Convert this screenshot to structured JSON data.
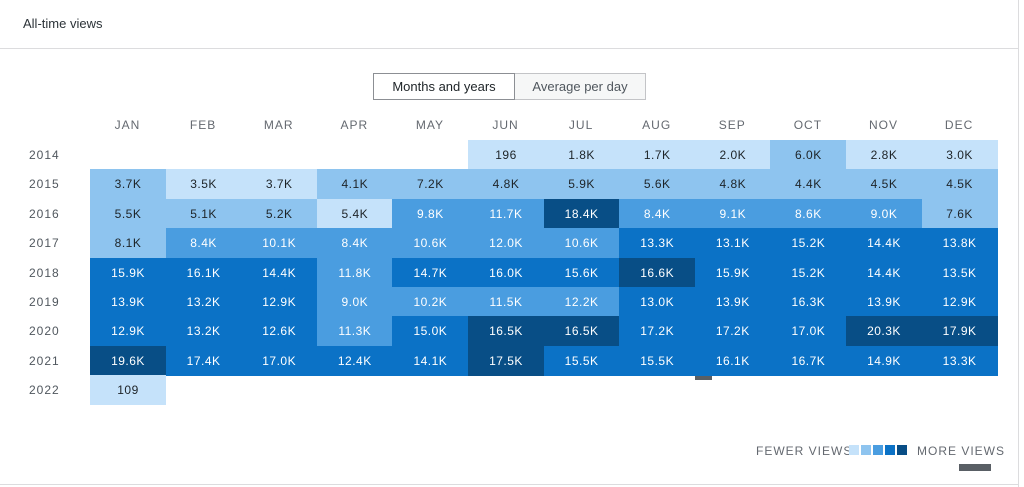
{
  "card": {
    "title": "All-time views"
  },
  "toggle": {
    "months_and_years": "Months and years",
    "average_per_day": "Average per day"
  },
  "months": [
    "JAN",
    "FEB",
    "MAR",
    "APR",
    "MAY",
    "JUN",
    "JUL",
    "AUG",
    "SEP",
    "OCT",
    "NOV",
    "DEC"
  ],
  "years": [
    "2014",
    "2015",
    "2016",
    "2017",
    "2018",
    "2019",
    "2020",
    "2021",
    "2022"
  ],
  "cells": [
    [
      null,
      null,
      null,
      null,
      null,
      "196",
      "1.8K",
      "1.7K",
      "2.0K",
      "6.0K",
      "2.8K",
      "3.0K"
    ],
    [
      "3.7K",
      "3.5K",
      "3.7K",
      "4.1K",
      "7.2K",
      "4.8K",
      "5.9K",
      "5.6K",
      "4.8K",
      "4.4K",
      "4.5K",
      "4.5K"
    ],
    [
      "5.5K",
      "5.1K",
      "5.2K",
      "5.4K",
      "9.8K",
      "11.7K",
      "18.4K",
      "8.4K",
      "9.1K",
      "8.6K",
      "9.0K",
      "7.6K"
    ],
    [
      "8.1K",
      "8.4K",
      "10.1K",
      "8.4K",
      "10.6K",
      "12.0K",
      "10.6K",
      "13.3K",
      "13.1K",
      "15.2K",
      "14.4K",
      "13.8K"
    ],
    [
      "15.9K",
      "16.1K",
      "14.4K",
      "11.8K",
      "14.7K",
      "16.0K",
      "15.6K",
      "16.6K",
      "15.9K",
      "15.2K",
      "14.4K",
      "13.5K"
    ],
    [
      "13.9K",
      "13.2K",
      "12.9K",
      "9.0K",
      "10.2K",
      "11.5K",
      "12.2K",
      "13.0K",
      "13.9K",
      "16.3K",
      "13.9K",
      "12.9K"
    ],
    [
      "12.9K",
      "13.2K",
      "12.6K",
      "11.3K",
      "15.0K",
      "16.5K",
      "16.5K",
      "17.2K",
      "17.2K",
      "17.0K",
      "20.3K",
      "17.9K"
    ],
    [
      "19.6K",
      "17.4K",
      "17.0K",
      "12.4K",
      "14.1K",
      "17.5K",
      "15.5K",
      "15.5K",
      "16.1K",
      "16.7K",
      "14.9K",
      "13.3K"
    ],
    [
      "109",
      null,
      null,
      null,
      null,
      null,
      null,
      null,
      null,
      null,
      null,
      null
    ]
  ],
  "levels": [
    [
      null,
      null,
      null,
      null,
      null,
      0,
      0,
      0,
      0,
      1,
      0,
      0
    ],
    [
      1,
      0,
      0,
      1,
      1,
      1,
      1,
      1,
      1,
      1,
      1,
      1
    ],
    [
      1,
      1,
      1,
      0,
      2,
      2,
      4,
      2,
      2,
      2,
      2,
      1
    ],
    [
      1,
      2,
      2,
      2,
      2,
      2,
      2,
      3,
      3,
      3,
      3,
      3
    ],
    [
      3,
      3,
      3,
      2,
      3,
      3,
      3,
      4,
      3,
      3,
      3,
      3
    ],
    [
      3,
      3,
      3,
      2,
      2,
      2,
      2,
      3,
      3,
      3,
      3,
      3
    ],
    [
      3,
      3,
      3,
      2,
      3,
      4,
      4,
      3,
      3,
      3,
      4,
      4
    ],
    [
      4,
      3,
      3,
      3,
      3,
      4,
      3,
      3,
      3,
      3,
      3,
      3
    ],
    [
      0,
      null,
      null,
      null,
      null,
      null,
      null,
      null,
      null,
      null,
      null,
      null
    ]
  ],
  "legend": {
    "fewer": "FEWER VIEWS",
    "more": "MORE VIEWS",
    "colors": [
      "#c5e2fa",
      "#8ec4ef",
      "#4a9de0",
      "#0b72c6",
      "#084e86"
    ]
  }
}
